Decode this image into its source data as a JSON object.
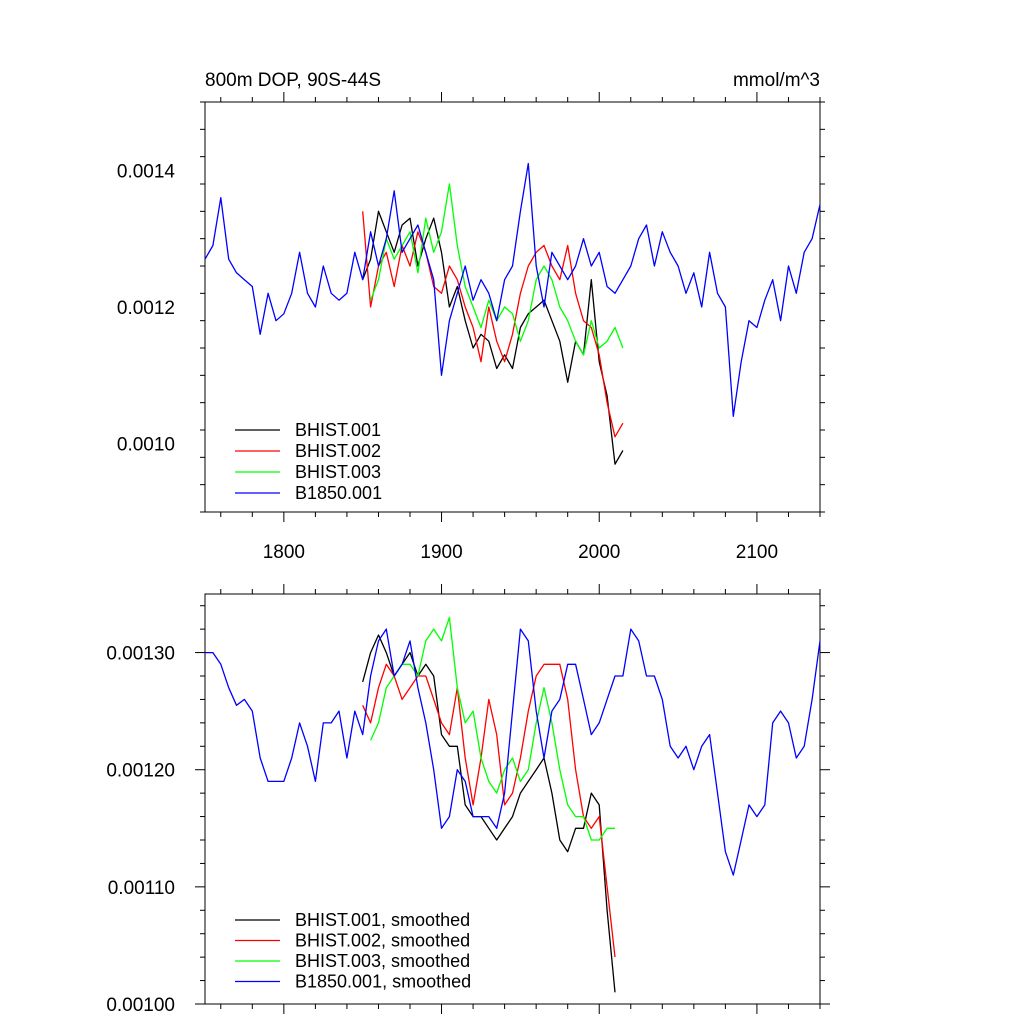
{
  "chart_data": [
    {
      "type": "line",
      "title": "800m DOP, 90S-44S",
      "units": "mmol/m^3",
      "xlim": [
        1750,
        2140
      ],
      "ylim": [
        0.0009,
        0.0015
      ],
      "xticks": [
        1800,
        1900,
        2000,
        2100
      ],
      "xtick_labels": [
        "1800",
        "1900",
        "2000",
        "2100"
      ],
      "yticks": [
        0.001,
        0.0012,
        0.0014
      ],
      "ytick_labels": [
        "0.0010",
        "0.0012",
        "0.0014"
      ],
      "legend_position": "bottom-left",
      "series": [
        {
          "name": "BHIST.001",
          "color": "#000000",
          "x": [
            1850,
            1855,
            1860,
            1865,
            1870,
            1875,
            1880,
            1885,
            1890,
            1895,
            1900,
            1905,
            1910,
            1915,
            1920,
            1925,
            1930,
            1935,
            1940,
            1945,
            1950,
            1955,
            1960,
            1965,
            1970,
            1975,
            1980,
            1985,
            1990,
            1995,
            2000,
            2005,
            2010,
            2015
          ],
          "y": [
            0.00124,
            0.00127,
            0.00134,
            0.00131,
            0.00128,
            0.00132,
            0.00133,
            0.00126,
            0.0013,
            0.00133,
            0.00128,
            0.0012,
            0.00123,
            0.00118,
            0.00114,
            0.00116,
            0.00115,
            0.00111,
            0.00113,
            0.00111,
            0.00117,
            0.00119,
            0.0012,
            0.00121,
            0.00118,
            0.00115,
            0.00109,
            0.00115,
            0.00113,
            0.00124,
            0.00112,
            0.00107,
            0.00097,
            0.00099
          ]
        },
        {
          "name": "BHIST.002",
          "color": "#ff0000",
          "x": [
            1850,
            1855,
            1860,
            1865,
            1870,
            1875,
            1880,
            1885,
            1890,
            1895,
            1900,
            1905,
            1910,
            1915,
            1920,
            1925,
            1930,
            1935,
            1940,
            1945,
            1950,
            1955,
            1960,
            1965,
            1970,
            1975,
            1980,
            1985,
            1990,
            1995,
            2000,
            2005,
            2010,
            2015
          ],
          "y": [
            0.00134,
            0.0012,
            0.00126,
            0.00128,
            0.00123,
            0.00129,
            0.00126,
            0.00131,
            0.00128,
            0.00123,
            0.00122,
            0.00126,
            0.00124,
            0.0012,
            0.00117,
            0.00112,
            0.0012,
            0.00115,
            0.00112,
            0.00116,
            0.00122,
            0.00126,
            0.00128,
            0.00129,
            0.00126,
            0.00124,
            0.00129,
            0.00122,
            0.00118,
            0.00117,
            0.00113,
            0.00106,
            0.00101,
            0.00103
          ]
        },
        {
          "name": "BHIST.003",
          "color": "#00ff00",
          "x": [
            1855,
            1860,
            1865,
            1870,
            1875,
            1880,
            1885,
            1890,
            1895,
            1900,
            1905,
            1910,
            1915,
            1920,
            1925,
            1930,
            1935,
            1940,
            1945,
            1950,
            1955,
            1960,
            1965,
            1970,
            1975,
            1980,
            1985,
            1990,
            1995,
            2000,
            2005,
            2010,
            2015
          ],
          "y": [
            0.00121,
            0.00124,
            0.0013,
            0.00127,
            0.00129,
            0.00131,
            0.00125,
            0.00133,
            0.00128,
            0.00131,
            0.00138,
            0.00129,
            0.00123,
            0.0012,
            0.00117,
            0.00121,
            0.00118,
            0.0012,
            0.00119,
            0.00115,
            0.00118,
            0.00124,
            0.00126,
            0.00124,
            0.0012,
            0.00118,
            0.00115,
            0.00113,
            0.00118,
            0.00114,
            0.00115,
            0.00117,
            0.00114
          ]
        },
        {
          "name": "B1850.001",
          "color": "#0000ff",
          "x": [
            1750,
            1755,
            1760,
            1765,
            1770,
            1775,
            1780,
            1785,
            1790,
            1795,
            1800,
            1805,
            1810,
            1815,
            1820,
            1825,
            1830,
            1835,
            1840,
            1845,
            1850,
            1855,
            1860,
            1865,
            1870,
            1875,
            1880,
            1885,
            1890,
            1895,
            1900,
            1905,
            1910,
            1915,
            1920,
            1925,
            1930,
            1935,
            1940,
            1945,
            1950,
            1955,
            1960,
            1965,
            1970,
            1975,
            1980,
            1985,
            1990,
            1995,
            2000,
            2005,
            2010,
            2015,
            2020,
            2025,
            2030,
            2035,
            2040,
            2045,
            2050,
            2055,
            2060,
            2065,
            2070,
            2075,
            2080,
            2085,
            2090,
            2095,
            2100,
            2105,
            2110,
            2115,
            2120,
            2125,
            2130,
            2135,
            2140
          ],
          "y": [
            0.00127,
            0.00129,
            0.00136,
            0.00127,
            0.00125,
            0.00124,
            0.00123,
            0.00116,
            0.00122,
            0.00118,
            0.00119,
            0.00122,
            0.00128,
            0.00122,
            0.0012,
            0.00126,
            0.00122,
            0.00121,
            0.00122,
            0.00128,
            0.00124,
            0.00131,
            0.00126,
            0.0013,
            0.00137,
            0.00128,
            0.0013,
            0.00132,
            0.00128,
            0.00124,
            0.0011,
            0.00118,
            0.00122,
            0.00126,
            0.00121,
            0.00124,
            0.00122,
            0.00118,
            0.00124,
            0.00126,
            0.00134,
            0.00141,
            0.00126,
            0.0012,
            0.00128,
            0.00126,
            0.00124,
            0.00126,
            0.0013,
            0.00126,
            0.00128,
            0.00123,
            0.00122,
            0.00124,
            0.00126,
            0.0013,
            0.00132,
            0.00126,
            0.00131,
            0.00128,
            0.00126,
            0.00122,
            0.00125,
            0.0012,
            0.00128,
            0.00122,
            0.0012,
            0.00104,
            0.00112,
            0.00118,
            0.00117,
            0.00121,
            0.00124,
            0.00118,
            0.00126,
            0.00122,
            0.00128,
            0.0013,
            0.00135
          ]
        }
      ],
      "legend": [
        "BHIST.001",
        "BHIST.002",
        "BHIST.003",
        "B1850.001"
      ]
    },
    {
      "type": "line",
      "title": "",
      "xlim": [
        1750,
        2140
      ],
      "ylim": [
        0.001,
        0.00135
      ],
      "xticks": [
        1800,
        1900,
        2000,
        2100
      ],
      "yticks": [
        0.001,
        0.0011,
        0.0012,
        0.0013
      ],
      "ytick_labels": [
        "0.00100",
        "0.00110",
        "0.00120",
        "0.00130"
      ],
      "legend_position": "bottom-left",
      "series": [
        {
          "name": "BHIST.001, smoothed",
          "color": "#000000",
          "x": [
            1850,
            1855,
            1860,
            1865,
            1870,
            1875,
            1880,
            1885,
            1890,
            1895,
            1900,
            1905,
            1910,
            1915,
            1920,
            1925,
            1930,
            1935,
            1940,
            1945,
            1950,
            1955,
            1960,
            1965,
            1970,
            1975,
            1980,
            1985,
            1990,
            1995,
            2000,
            2005,
            2010
          ],
          "y": [
            0.001275,
            0.0013,
            0.001315,
            0.0013,
            0.00128,
            0.00129,
            0.0013,
            0.00128,
            0.00129,
            0.00128,
            0.00123,
            0.00122,
            0.00122,
            0.00117,
            0.00116,
            0.00116,
            0.00115,
            0.00114,
            0.00115,
            0.00116,
            0.00118,
            0.00119,
            0.0012,
            0.00121,
            0.00118,
            0.00114,
            0.00113,
            0.00115,
            0.00115,
            0.00118,
            0.00117,
            0.00108,
            0.00101
          ]
        },
        {
          "name": "BHIST.002, smoothed",
          "color": "#ff0000",
          "x": [
            1850,
            1855,
            1860,
            1865,
            1870,
            1875,
            1880,
            1885,
            1890,
            1895,
            1900,
            1905,
            1910,
            1915,
            1920,
            1925,
            1930,
            1935,
            1940,
            1945,
            1950,
            1955,
            1960,
            1965,
            1970,
            1975,
            1980,
            1985,
            1990,
            1995,
            2000,
            2005,
            2010
          ],
          "y": [
            0.001255,
            0.00124,
            0.00127,
            0.00129,
            0.00128,
            0.00126,
            0.00127,
            0.00128,
            0.00128,
            0.00126,
            0.00124,
            0.00123,
            0.00127,
            0.00121,
            0.00117,
            0.00121,
            0.00126,
            0.00123,
            0.00117,
            0.00118,
            0.00121,
            0.00125,
            0.00128,
            0.00129,
            0.00129,
            0.00129,
            0.00126,
            0.0012,
            0.00116,
            0.00115,
            0.00116,
            0.0011,
            0.00104
          ]
        },
        {
          "name": "BHIST.003, smoothed",
          "color": "#00ff00",
          "x": [
            1855,
            1860,
            1865,
            1870,
            1875,
            1880,
            1885,
            1890,
            1895,
            1900,
            1905,
            1910,
            1915,
            1920,
            1925,
            1930,
            1935,
            1940,
            1945,
            1950,
            1955,
            1960,
            1965,
            1970,
            1975,
            1980,
            1985,
            1990,
            1995,
            2000,
            2005,
            2010
          ],
          "y": [
            0.001225,
            0.00124,
            0.00127,
            0.00128,
            0.00129,
            0.00129,
            0.00128,
            0.00131,
            0.00132,
            0.00131,
            0.00133,
            0.00127,
            0.00124,
            0.00125,
            0.00121,
            0.00119,
            0.00118,
            0.0012,
            0.00121,
            0.00119,
            0.0012,
            0.00124,
            0.00127,
            0.00124,
            0.0012,
            0.00117,
            0.00116,
            0.00116,
            0.00114,
            0.00114,
            0.00115,
            0.00115
          ]
        },
        {
          "name": "B1850.001, smoothed",
          "color": "#0000ff",
          "x": [
            1750,
            1755,
            1760,
            1765,
            1770,
            1775,
            1780,
            1785,
            1790,
            1795,
            1800,
            1805,
            1810,
            1815,
            1820,
            1825,
            1830,
            1835,
            1840,
            1845,
            1850,
            1855,
            1860,
            1865,
            1870,
            1875,
            1880,
            1885,
            1890,
            1895,
            1900,
            1905,
            1910,
            1915,
            1920,
            1925,
            1930,
            1935,
            1940,
            1945,
            1950,
            1955,
            1960,
            1965,
            1970,
            1975,
            1980,
            1985,
            1990,
            1995,
            2000,
            2005,
            2010,
            2015,
            2020,
            2025,
            2030,
            2035,
            2040,
            2045,
            2050,
            2055,
            2060,
            2065,
            2070,
            2075,
            2080,
            2085,
            2090,
            2095,
            2100,
            2105,
            2110,
            2115,
            2120,
            2125,
            2130,
            2135,
            2140
          ],
          "y": [
            0.0013,
            0.0013,
            0.00129,
            0.00127,
            0.001255,
            0.00126,
            0.00125,
            0.00121,
            0.00119,
            0.00119,
            0.00119,
            0.00121,
            0.00124,
            0.00122,
            0.00119,
            0.00124,
            0.00124,
            0.00125,
            0.00121,
            0.00125,
            0.00123,
            0.00128,
            0.00131,
            0.00132,
            0.00128,
            0.00129,
            0.00131,
            0.00127,
            0.00124,
            0.0012,
            0.00115,
            0.00116,
            0.0012,
            0.00119,
            0.00116,
            0.00116,
            0.00116,
            0.00115,
            0.00118,
            0.00125,
            0.00132,
            0.00131,
            0.00125,
            0.00121,
            0.00125,
            0.00126,
            0.00129,
            0.00129,
            0.00126,
            0.00123,
            0.00124,
            0.00126,
            0.00128,
            0.00128,
            0.00132,
            0.00131,
            0.00128,
            0.00128,
            0.00126,
            0.00122,
            0.00121,
            0.00122,
            0.0012,
            0.00122,
            0.00123,
            0.00118,
            0.00113,
            0.00111,
            0.00114,
            0.00117,
            0.00116,
            0.00117,
            0.00124,
            0.00125,
            0.00124,
            0.00121,
            0.00122,
            0.00126,
            0.00131
          ]
        }
      ],
      "legend": [
        "BHIST.001, smoothed",
        "BHIST.002, smoothed",
        "BHIST.003, smoothed",
        "B1850.001, smoothed"
      ]
    }
  ]
}
